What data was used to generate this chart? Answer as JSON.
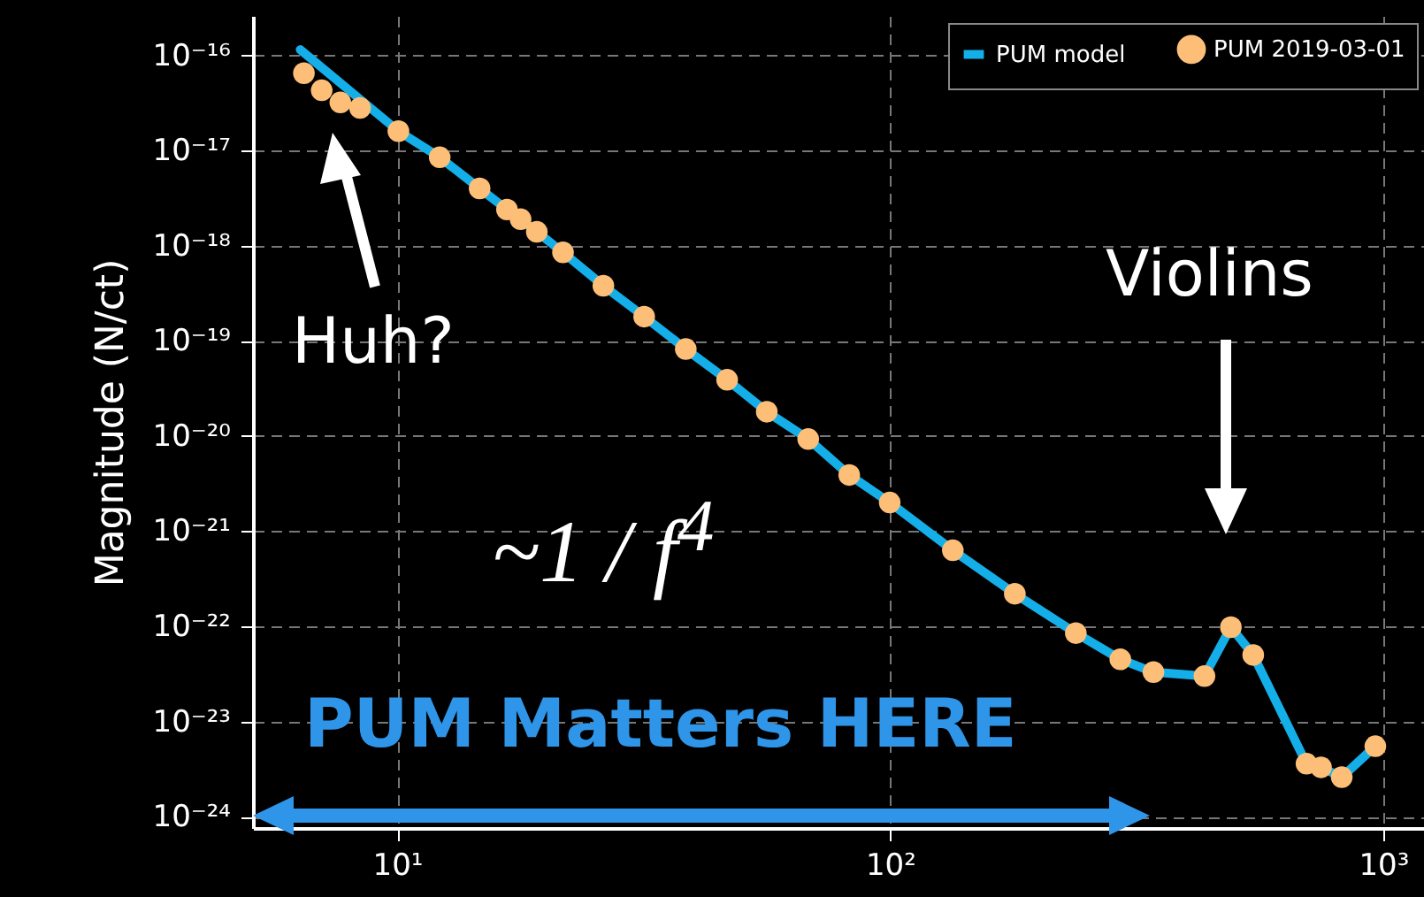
{
  "chart_data": {
    "type": "line",
    "ylabel": "Magnitude (N/ct)",
    "log": "xy",
    "grid": true,
    "legend": "top right",
    "xlim": [
      5.1,
      1210
    ],
    "ylim": [
      7.6e-25,
      2.6e-16
    ],
    "xticks": [
      {
        "value": 10,
        "label": "10¹"
      },
      {
        "value": 100,
        "label": "10²"
      },
      {
        "value": 1000,
        "label": "10³"
      }
    ],
    "yticks": [
      {
        "value": 1e-16,
        "label": "10⁻¹⁶"
      },
      {
        "value": 1e-17,
        "label": "10⁻¹⁷"
      },
      {
        "value": 1e-18,
        "label": "10⁻¹⁸"
      },
      {
        "value": 1e-19,
        "label": "10⁻¹⁹"
      },
      {
        "value": 1e-20,
        "label": "10⁻²⁰"
      },
      {
        "value": 1e-21,
        "label": "10⁻²¹"
      },
      {
        "value": 1e-22,
        "label": "10⁻²²"
      },
      {
        "value": 1e-23,
        "label": "10⁻²³"
      },
      {
        "value": 1e-24,
        "label": "10⁻²⁴"
      }
    ],
    "series": [
      {
        "name": "PUM model",
        "type": "line",
        "marker": "none",
        "color": "#14aee8",
        "x": [
          6.36,
          10.06,
          12.2,
          14.7,
          16.7,
          17.8,
          19.2,
          21.7,
          26.2,
          31.7,
          38.5,
          46.7,
          56.2,
          68.2,
          82.6,
          99.8,
          134,
          179,
          238,
          293,
          342,
          434,
          491,
          545,
          699,
          748,
          824,
          964
        ],
        "values": [
          1.15e-16,
          1.6e-17,
          8.5e-18,
          4e-18,
          2.4e-18,
          1.9e-18,
          1.4e-18,
          8.5e-19,
          3.8e-19,
          1.8e-19,
          8.2e-20,
          3.9e-20,
          1.8e-20,
          9.3e-21,
          3.9e-21,
          2e-21,
          6.3e-22,
          2.2e-22,
          8.5e-23,
          4.5e-23,
          3.3e-23,
          3e-23,
          9.8e-23,
          5e-23,
          3.6e-24,
          3.3e-24,
          2.6e-24,
          5.5e-24
        ]
      },
      {
        "name": "PUM 2019-03-01",
        "type": "scatter",
        "marker": "circle",
        "color": "#fdbf78",
        "x": [
          6.47,
          7.03,
          7.67,
          8.41,
          10.06,
          12.2,
          14.7,
          16.7,
          17.8,
          19.2,
          21.7,
          26.2,
          31.7,
          38.5,
          46.7,
          56.2,
          68.2,
          82.6,
          99.8,
          134,
          179,
          238,
          293,
          342,
          434,
          491,
          545,
          699,
          748,
          824,
          964
        ],
        "values": [
          6.5e-17,
          4.3e-17,
          3.2e-17,
          2.8e-17,
          1.6e-17,
          8.5e-18,
          4e-18,
          2.4e-18,
          1.9e-18,
          1.4e-18,
          8.5e-19,
          3.8e-19,
          1.8e-19,
          8.2e-20,
          3.9e-20,
          1.8e-20,
          9.3e-21,
          3.9e-21,
          2e-21,
          6.3e-22,
          2.2e-22,
          8.5e-23,
          4.5e-23,
          3.3e-23,
          3e-23,
          9.8e-23,
          5e-23,
          3.6e-24,
          3.3e-24,
          2.6e-24,
          5.5e-24
        ]
      }
    ],
    "annotations": [
      "Huh?",
      "Violins",
      "~1 / f$^{4}$",
      "PUM Matters HERE"
    ]
  }
}
